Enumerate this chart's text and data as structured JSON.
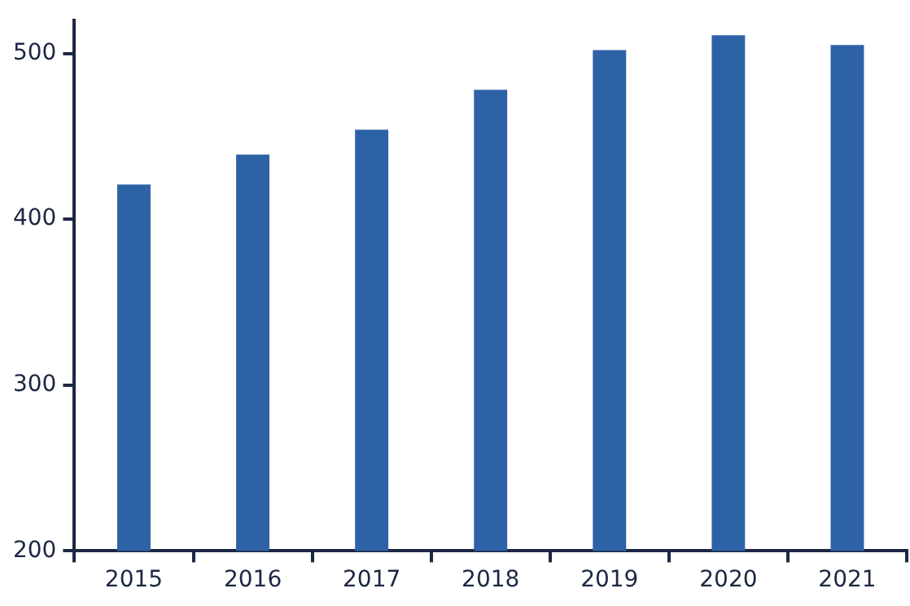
{
  "chart_data": {
    "type": "bar",
    "categories": [
      "2015",
      "2016",
      "2017",
      "2018",
      "2019",
      "2020",
      "2021"
    ],
    "values": [
      421,
      439,
      454,
      478,
      502,
      511,
      505
    ],
    "color": "#2e62a6",
    "ylim": [
      200,
      520
    ],
    "yticks": [
      200,
      300,
      400,
      500
    ],
    "grid": false
  }
}
